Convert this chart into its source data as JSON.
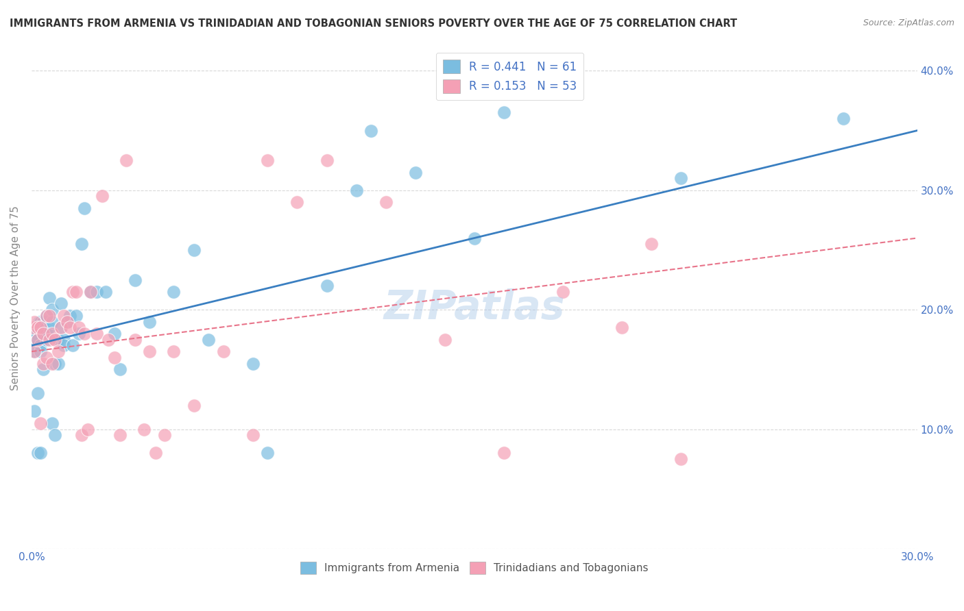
{
  "title": "IMMIGRANTS FROM ARMENIA VS TRINIDADIAN AND TOBAGONIAN SENIORS POVERTY OVER THE AGE OF 75 CORRELATION CHART",
  "source": "Source: ZipAtlas.com",
  "ylabel": "Seniors Poverty Over the Age of 75",
  "r_armenia": 0.441,
  "n_armenia": 61,
  "r_trinidadian": 0.153,
  "n_trinidadian": 53,
  "legend_label_1": "Immigrants from Armenia",
  "legend_label_2": "Trinidadians and Tobagonians",
  "xlim": [
    0.0,
    0.3
  ],
  "ylim": [
    0.0,
    0.42
  ],
  "xticks": [
    0.0,
    0.05,
    0.1,
    0.15,
    0.2,
    0.25,
    0.3
  ],
  "xtick_labels_show": [
    "0.0%",
    "",
    "",
    "",
    "",
    "",
    "30.0%"
  ],
  "yticks": [
    0.0,
    0.1,
    0.2,
    0.3,
    0.4
  ],
  "ytick_labels_right": [
    "",
    "10.0%",
    "20.0%",
    "30.0%",
    "40.0%"
  ],
  "color_armenia": "#7bbde0",
  "color_trinidadian": "#f4a0b5",
  "color_line_armenia": "#3a7fc1",
  "color_line_trinidadian": "#e8748a",
  "color_text_blue": "#4472c4",
  "background_color": "#ffffff",
  "grid_color": "#d8d8d8",
  "armenia_x": [
    0.0005,
    0.0008,
    0.001,
    0.001,
    0.001,
    0.0015,
    0.002,
    0.002,
    0.002,
    0.0025,
    0.003,
    0.003,
    0.003,
    0.003,
    0.003,
    0.004,
    0.004,
    0.004,
    0.005,
    0.005,
    0.005,
    0.006,
    0.006,
    0.007,
    0.007,
    0.007,
    0.008,
    0.008,
    0.009,
    0.009,
    0.01,
    0.01,
    0.011,
    0.011,
    0.012,
    0.013,
    0.014,
    0.015,
    0.016,
    0.017,
    0.018,
    0.02,
    0.022,
    0.025,
    0.028,
    0.03,
    0.035,
    0.04,
    0.048,
    0.055,
    0.06,
    0.075,
    0.08,
    0.1,
    0.11,
    0.115,
    0.13,
    0.15,
    0.16,
    0.22,
    0.275
  ],
  "armenia_y": [
    0.175,
    0.17,
    0.165,
    0.175,
    0.115,
    0.18,
    0.175,
    0.13,
    0.08,
    0.19,
    0.19,
    0.185,
    0.17,
    0.165,
    0.08,
    0.19,
    0.15,
    0.18,
    0.195,
    0.18,
    0.175,
    0.185,
    0.21,
    0.2,
    0.19,
    0.105,
    0.155,
    0.095,
    0.175,
    0.155,
    0.205,
    0.185,
    0.175,
    0.17,
    0.19,
    0.195,
    0.17,
    0.195,
    0.18,
    0.255,
    0.285,
    0.215,
    0.215,
    0.215,
    0.18,
    0.15,
    0.225,
    0.19,
    0.215,
    0.25,
    0.175,
    0.155,
    0.08,
    0.22,
    0.3,
    0.35,
    0.315,
    0.26,
    0.365,
    0.31,
    0.36
  ],
  "trinidadian_x": [
    0.0005,
    0.001,
    0.001,
    0.002,
    0.002,
    0.003,
    0.003,
    0.004,
    0.004,
    0.005,
    0.005,
    0.006,
    0.006,
    0.007,
    0.007,
    0.008,
    0.009,
    0.01,
    0.011,
    0.012,
    0.013,
    0.014,
    0.015,
    0.016,
    0.017,
    0.018,
    0.019,
    0.02,
    0.022,
    0.024,
    0.026,
    0.028,
    0.03,
    0.032,
    0.035,
    0.038,
    0.04,
    0.042,
    0.045,
    0.048,
    0.055,
    0.065,
    0.075,
    0.08,
    0.09,
    0.1,
    0.12,
    0.14,
    0.16,
    0.18,
    0.2,
    0.21,
    0.22
  ],
  "trinidadian_y": [
    0.185,
    0.19,
    0.165,
    0.185,
    0.175,
    0.185,
    0.105,
    0.18,
    0.155,
    0.195,
    0.16,
    0.195,
    0.175,
    0.18,
    0.155,
    0.175,
    0.165,
    0.185,
    0.195,
    0.19,
    0.185,
    0.215,
    0.215,
    0.185,
    0.095,
    0.18,
    0.1,
    0.215,
    0.18,
    0.295,
    0.175,
    0.16,
    0.095,
    0.325,
    0.175,
    0.1,
    0.165,
    0.08,
    0.095,
    0.165,
    0.12,
    0.165,
    0.095,
    0.325,
    0.29,
    0.325,
    0.29,
    0.175,
    0.08,
    0.215,
    0.185,
    0.255,
    0.075
  ],
  "line_armenia_x0": 0.0,
  "line_armenia_y0": 0.17,
  "line_armenia_x1": 0.3,
  "line_armenia_y1": 0.35,
  "line_trini_x0": 0.0,
  "line_trini_y0": 0.165,
  "line_trini_x1": 0.3,
  "line_trini_y1": 0.26
}
